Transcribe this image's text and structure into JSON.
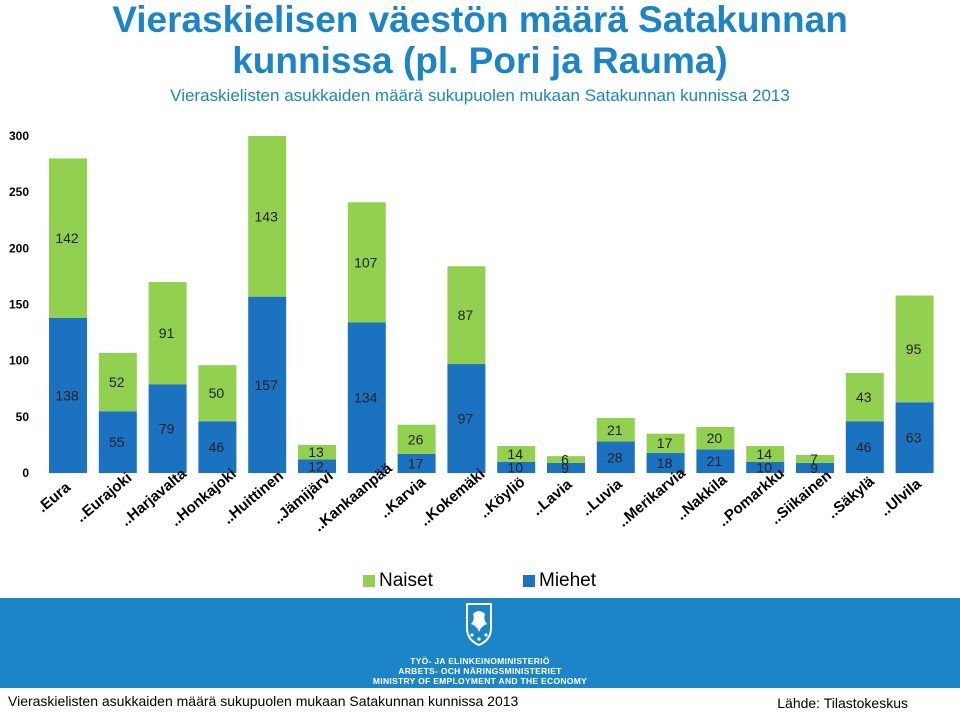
{
  "title_line1": "Vieraskielisen väestön määrä Satakunnan",
  "title_line2": "kunnissa (pl. Pori ja Rauma)",
  "chart_data": {
    "type": "bar",
    "stacked": true,
    "subtitle": "Vieraskielisten asukkaiden määrä sukupuolen mukaan Satakunnan kunnissa 2013",
    "categories": [
      ".Eura",
      "..Eurajoki",
      "..Harjavalta",
      "..Honkajoki",
      "..Huittinen",
      "..Jämijärvi",
      "..Kankaanpää",
      "..Karvia",
      "..Kokemäki",
      "..Köyliö",
      "..Lavia",
      "..Luvia",
      "..Merikarvia",
      "..Nakkila",
      "..Pomarkku",
      "..Siikainen",
      "..Säkylä",
      "..Ulvila"
    ],
    "series": [
      {
        "name": "Miehet",
        "color": "#1a72c0",
        "values": [
          138,
          55,
          79,
          46,
          157,
          12,
          134,
          17,
          97,
          10,
          9,
          28,
          18,
          21,
          10,
          9,
          46,
          63
        ]
      },
      {
        "name": "Naiset",
        "color": "#92d050",
        "values": [
          142,
          52,
          91,
          50,
          143,
          13,
          107,
          26,
          87,
          14,
          6,
          21,
          17,
          20,
          14,
          7,
          43,
          95
        ]
      }
    ],
    "yticks": [
      0,
      50,
      100,
      150,
      200,
      250,
      300
    ],
    "ylim": [
      0,
      300
    ],
    "grid": false,
    "legend": "bottom-center"
  },
  "legend": {
    "naiset": "Naiset",
    "miehet": "Miehet"
  },
  "ministry": {
    "line1": "TYÖ- JA ELINKEINOMINISTERIÖ",
    "line2": "ARBETS- OCH NÄRINGSMINISTERIET",
    "line3": "MINISTRY OF EMPLOYMENT AND THE ECONOMY"
  },
  "footer": {
    "left": "Vieraskielisten asukkaiden määrä sukupuolen mukaan Satakunnan kunnissa 2013",
    "right": "Lähde: Tilastokeskus"
  }
}
